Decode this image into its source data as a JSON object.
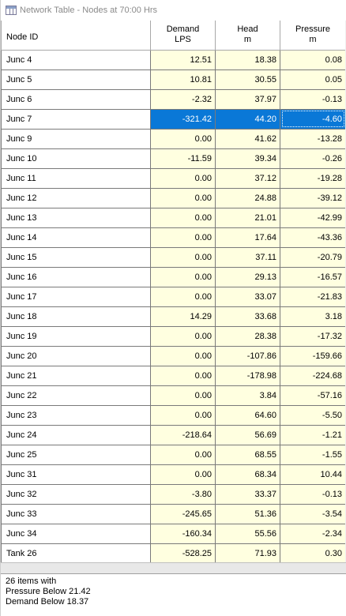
{
  "window": {
    "title": "Network Table - Nodes at 70:00 Hrs",
    "icon": "table-icon"
  },
  "columns": {
    "node_id": "Node ID",
    "demand": {
      "label": "Demand",
      "unit": "LPS"
    },
    "head": {
      "label": "Head",
      "unit": "m"
    },
    "pressure": {
      "label": "Pressure",
      "unit": "m"
    }
  },
  "rows": [
    {
      "id": "Junc 4",
      "demand": "12.51",
      "head": "18.38",
      "pressure": "0.08"
    },
    {
      "id": "Junc 5",
      "demand": "10.81",
      "head": "30.55",
      "pressure": "0.05"
    },
    {
      "id": "Junc 6",
      "demand": "-2.32",
      "head": "37.97",
      "pressure": "-0.13"
    },
    {
      "id": "Junc 7",
      "demand": "-321.42",
      "head": "44.20",
      "pressure": "-4.60"
    },
    {
      "id": "Junc 9",
      "demand": "0.00",
      "head": "41.62",
      "pressure": "-13.28"
    },
    {
      "id": "Junc 10",
      "demand": "-11.59",
      "head": "39.34",
      "pressure": "-0.26"
    },
    {
      "id": "Junc 11",
      "demand": "0.00",
      "head": "37.12",
      "pressure": "-19.28"
    },
    {
      "id": "Junc 12",
      "demand": "0.00",
      "head": "24.88",
      "pressure": "-39.12"
    },
    {
      "id": "Junc 13",
      "demand": "0.00",
      "head": "21.01",
      "pressure": "-42.99"
    },
    {
      "id": "Junc 14",
      "demand": "0.00",
      "head": "17.64",
      "pressure": "-43.36"
    },
    {
      "id": "Junc 15",
      "demand": "0.00",
      "head": "37.11",
      "pressure": "-20.79"
    },
    {
      "id": "Junc 16",
      "demand": "0.00",
      "head": "29.13",
      "pressure": "-16.57"
    },
    {
      "id": "Junc 17",
      "demand": "0.00",
      "head": "33.07",
      "pressure": "-21.83"
    },
    {
      "id": "Junc 18",
      "demand": "14.29",
      "head": "33.68",
      "pressure": "3.18"
    },
    {
      "id": "Junc 19",
      "demand": "0.00",
      "head": "28.38",
      "pressure": "-17.32"
    },
    {
      "id": "Junc 20",
      "demand": "0.00",
      "head": "-107.86",
      "pressure": "-159.66"
    },
    {
      "id": "Junc 21",
      "demand": "0.00",
      "head": "-178.98",
      "pressure": "-224.68"
    },
    {
      "id": "Junc 22",
      "demand": "0.00",
      "head": "3.84",
      "pressure": "-57.16"
    },
    {
      "id": "Junc 23",
      "demand": "0.00",
      "head": "64.60",
      "pressure": "-5.50"
    },
    {
      "id": "Junc 24",
      "demand": "-218.64",
      "head": "56.69",
      "pressure": "-1.21"
    },
    {
      "id": "Junc 25",
      "demand": "0.00",
      "head": "68.55",
      "pressure": "-1.55"
    },
    {
      "id": "Junc 31",
      "demand": "0.00",
      "head": "68.34",
      "pressure": "10.44"
    },
    {
      "id": "Junc 32",
      "demand": "-3.80",
      "head": "33.37",
      "pressure": "-0.13"
    },
    {
      "id": "Junc 33",
      "demand": "-245.65",
      "head": "51.36",
      "pressure": "-3.54"
    },
    {
      "id": "Junc 34",
      "demand": "-160.34",
      "head": "55.56",
      "pressure": "-2.34"
    },
    {
      "id": "Tank 26",
      "demand": "-528.25",
      "head": "71.93",
      "pressure": "0.30"
    }
  ],
  "selected_row": "Junc 7",
  "status": {
    "line1": "26 items with",
    "line2": "Pressure Below 21.42",
    "line3": "Demand Below 18.37"
  },
  "colors": {
    "selection": "#0a78d7",
    "value_cell": "#ffffe0"
  }
}
